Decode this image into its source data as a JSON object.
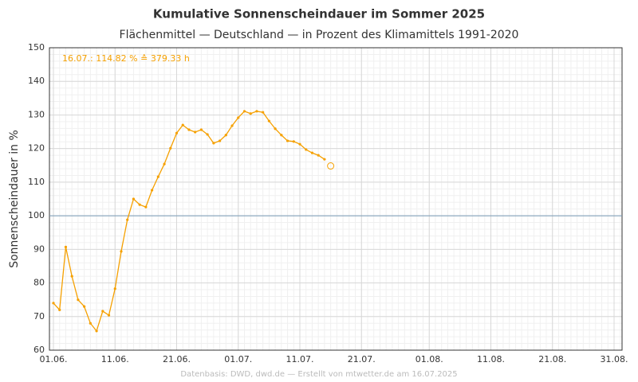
{
  "chart_data": {
    "type": "line",
    "title": "Kumulative Sonnenscheindauer im Sommer 2025",
    "subtitle": "Flächenmittel — Deutschland — in Prozent des Klimamittels 1991-2020",
    "y_label": "Sonnenscheindauer in %",
    "footer": "Datenbasis: DWD, dwd.de — Erstellt von mtwetter.de am 16.07.2025",
    "annotation": "16.07.:  114.82 % ≙ 379.33 h",
    "x": [
      "01.06.",
      "02.06.",
      "03.06.",
      "04.06.",
      "05.06.",
      "06.06.",
      "07.06.",
      "08.06.",
      "09.06.",
      "10.06.",
      "11.06.",
      "12.06.",
      "13.06.",
      "14.06.",
      "15.06.",
      "16.06.",
      "17.06.",
      "18.06.",
      "19.06.",
      "20.06.",
      "21.06.",
      "22.06.",
      "23.06.",
      "24.06.",
      "25.06.",
      "26.06.",
      "27.06.",
      "28.06.",
      "29.06.",
      "30.06.",
      "01.07.",
      "02.07.",
      "03.07.",
      "04.07.",
      "05.07.",
      "06.07.",
      "07.07.",
      "08.07.",
      "09.07.",
      "10.07.",
      "11.07.",
      "12.07.",
      "13.07.",
      "14.07.",
      "15.07."
    ],
    "series": [
      {
        "color": "#f5a000",
        "values": [
          74,
          72,
          90.7,
          82,
          75,
          73,
          68,
          65.7,
          71.6,
          70.4,
          78.3,
          89.4,
          98.8,
          105,
          103.3,
          102.6,
          107.6,
          111.6,
          115.4,
          120.1,
          124.6,
          127,
          125.6,
          124.9,
          125.6,
          124.2,
          121.6,
          122.3,
          124,
          126.8,
          129.2,
          131.1,
          130.4,
          131.1,
          130.8,
          128.2,
          125.9,
          124,
          122.3,
          122.1,
          121.3,
          119.7,
          118.7,
          118,
          116.8
        ]
      }
    ],
    "highlight": {
      "x": "16.07.",
      "value": 114.82
    },
    "reference_line": 100,
    "reference_color": "#7a9cb8",
    "xlim": [
      "01.06.",
      "31.08."
    ],
    "xticks": [
      "01.06.",
      "11.06.",
      "21.06.",
      "01.07.",
      "11.07.",
      "21.07.",
      "01.08.",
      "11.08.",
      "21.08.",
      "31.08."
    ],
    "ylim": [
      60,
      150
    ],
    "yticks": [
      60,
      70,
      80,
      90,
      100,
      110,
      120,
      130,
      140,
      150
    ],
    "grid": true
  }
}
